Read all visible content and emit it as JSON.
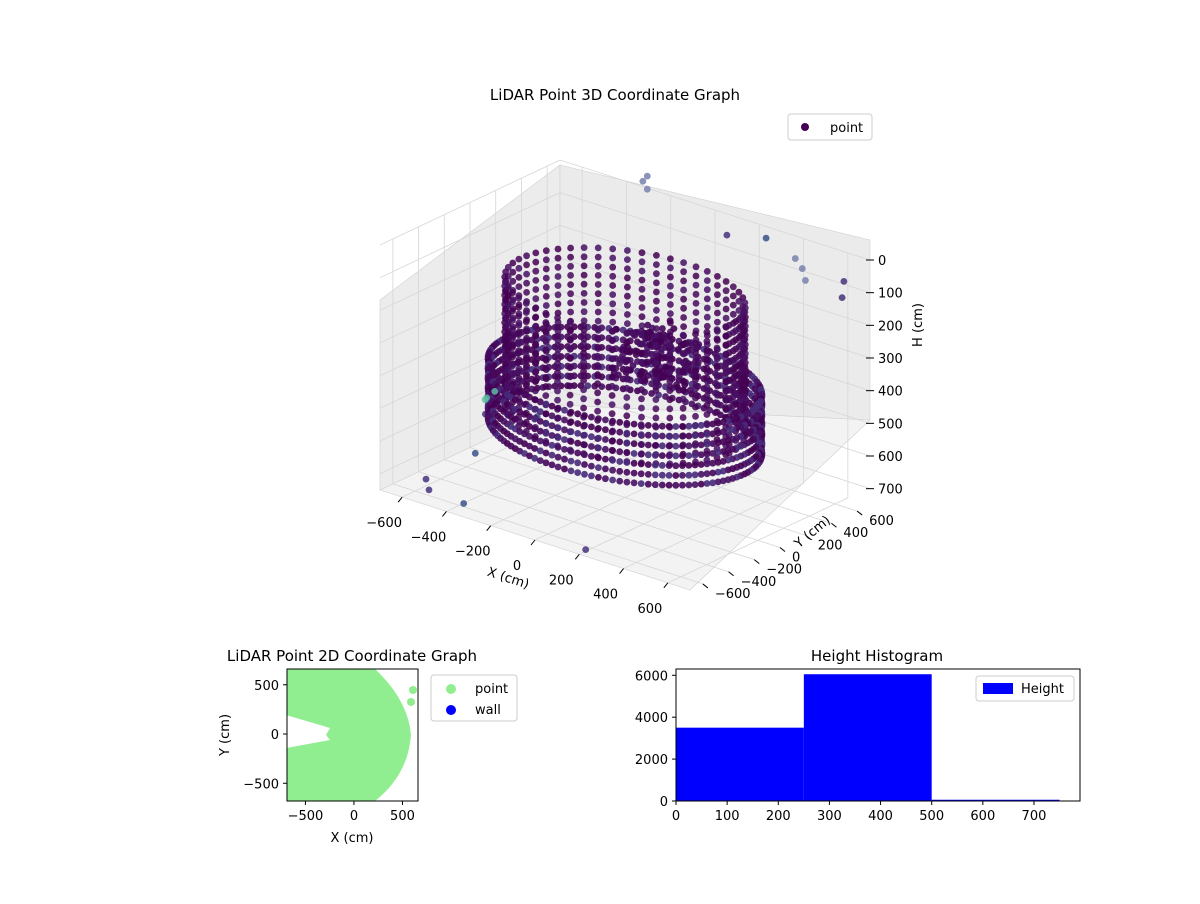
{
  "colors": {
    "point_3d_dark": "#440154",
    "point_3d_mid": "#3b528b",
    "point_3d_light": "#21918c",
    "point_2d": "#90ee90",
    "wall_2d": "#0000ff",
    "histogram": "#0000ff",
    "pane": "#f2f2f2",
    "grid": "#d9d9d9"
  },
  "chart_data": [
    {
      "type": "scatter",
      "projection": "3d",
      "title": "LiDAR Point 3D Coordinate Graph",
      "xlabel": "X (cm)",
      "ylabel": "Y (cm)",
      "zlabel": "H (cm)",
      "x_ticks": [
        "−600",
        "−400",
        "−200",
        "0",
        "200",
        "400",
        "600"
      ],
      "y_ticks": [
        "−600",
        "−400",
        "−200",
        "0",
        "200",
        "400",
        "600"
      ],
      "z_ticks": [
        "0",
        "100",
        "200",
        "300",
        "400",
        "500",
        "600",
        "700"
      ],
      "xlim": [
        -700,
        700
      ],
      "ylim": [
        -700,
        700
      ],
      "zlim": [
        0,
        750
      ],
      "z_inverted": true,
      "grid": true,
      "colormap": "viridis",
      "legend": {
        "position": "top-right",
        "entries": [
          {
            "label": "point",
            "color": "#440154"
          }
        ]
      },
      "series": [
        {
          "name": "point",
          "description_rings": [
            {
              "radius": 520,
              "h": 400,
              "note": "dense circular wall band"
            },
            {
              "radius": 470,
              "h": 320,
              "note": "inner ring of sample columns"
            }
          ],
          "stray_points": [
            {
              "x": -640,
              "y": 420,
              "h": 720
            },
            {
              "x": -680,
              "y": 300,
              "h": 690
            },
            {
              "x": -700,
              "y": 120,
              "h": 670
            },
            {
              "x": -560,
              "y": -200,
              "h": 700
            },
            {
              "x": -620,
              "y": -480,
              "h": 740
            },
            {
              "x": -560,
              "y": -560,
              "h": 745
            },
            {
              "x": -380,
              "y": -600,
              "h": 740
            },
            {
              "x": 200,
              "y": -650,
              "h": 745
            },
            {
              "x": 100,
              "y": 620,
              "h": 40
            },
            {
              "x": 260,
              "y": 650,
              "h": 20
            },
            {
              "x": 640,
              "y": 600,
              "h": 60
            },
            {
              "x": 690,
              "y": 500,
              "h": 80
            }
          ]
        }
      ]
    },
    {
      "type": "scatter",
      "title": "LiDAR Point 2D Coordinate Graph",
      "xlabel": "X (cm)",
      "ylabel": "Y (cm)",
      "x_ticks": [
        "−500",
        "0",
        "500"
      ],
      "y_ticks": [
        "500",
        "0",
        "−500"
      ],
      "xlim": [
        -690,
        660
      ],
      "ylim": [
        -680,
        660
      ],
      "grid": false,
      "legend": {
        "position": "outside-right",
        "entries": [
          {
            "label": "point",
            "color": "#90ee90"
          },
          {
            "label": "wall",
            "color": "#0000ff"
          }
        ]
      },
      "series": [
        {
          "name": "point",
          "shape": "filled disc of radius ~600 cm centered near (0,0) with a wedge gap on the left near y=0",
          "extra_points": [
            {
              "x": 620,
              "y": 440
            },
            {
              "x": 600,
              "y": 340
            }
          ]
        },
        {
          "name": "wall",
          "points": []
        }
      ]
    },
    {
      "type": "bar",
      "subtype": "histogram",
      "title": "Height Histogram",
      "xlabel": "",
      "ylabel": "",
      "x_ticks": [
        "0",
        "100",
        "200",
        "300",
        "400",
        "500",
        "600",
        "700"
      ],
      "y_ticks": [
        "0",
        "2000",
        "4000",
        "6000"
      ],
      "xlim": [
        0,
        790
      ],
      "ylim": [
        0,
        6300
      ],
      "bins": [
        {
          "x0": 0,
          "x1": 250,
          "count": 3500
        },
        {
          "x0": 250,
          "x1": 500,
          "count": 6050
        },
        {
          "x0": 500,
          "x1": 750,
          "count": 60
        }
      ],
      "legend": {
        "position": "top-right",
        "entries": [
          {
            "label": "Height",
            "color": "#0000ff"
          }
        ]
      }
    }
  ]
}
